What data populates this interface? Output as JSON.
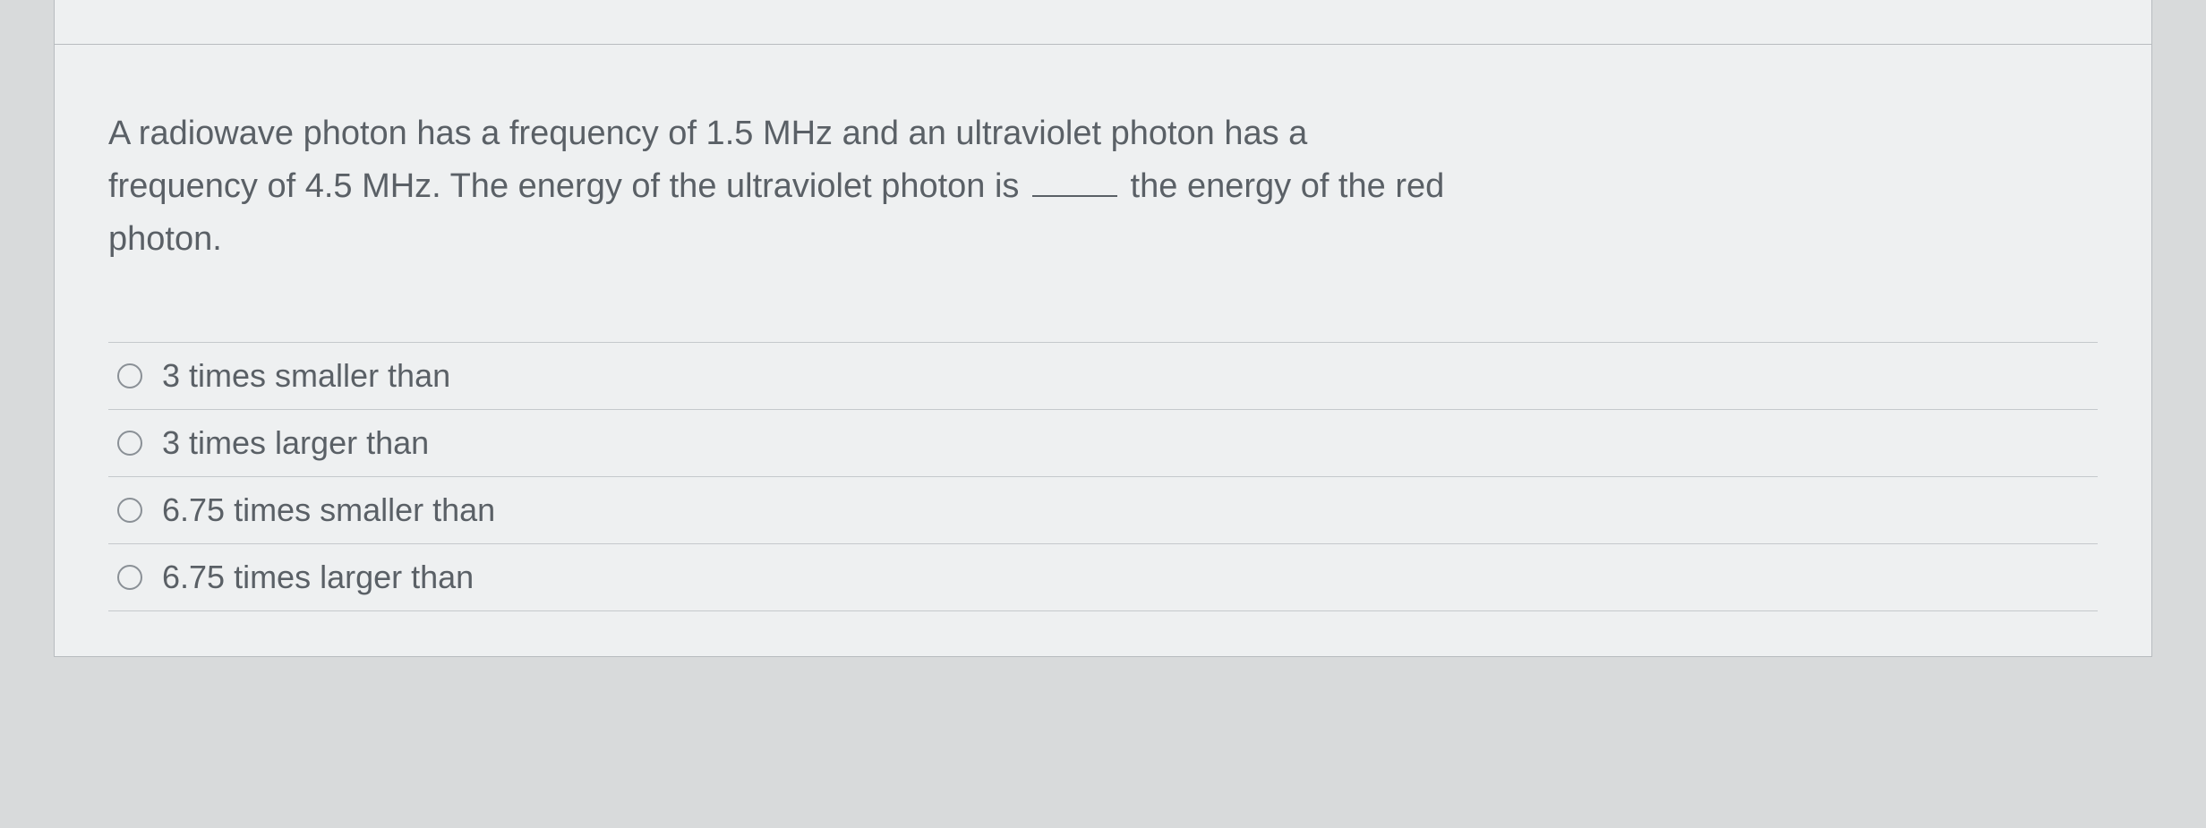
{
  "question": {
    "text_line1": "A radiowave photon has a frequency of 1.5 MHz and an ultraviolet photon has a",
    "text_line2_before_blank": "frequency of 4.5 MHz. The energy of the ultraviolet photon is ",
    "text_line2_after_blank": " the energy of the red",
    "text_line3": "photon."
  },
  "options": [
    {
      "label": "3 times smaller than"
    },
    {
      "label": "3 times larger than"
    },
    {
      "label": "6.75 times smaller than"
    },
    {
      "label": "6.75 times larger than"
    }
  ],
  "colors": {
    "background": "#d8dadb",
    "panel_background": "#eef0f1",
    "border": "#b8bcbf",
    "row_border": "#c5c9cc",
    "text": "#5a6066",
    "radio_border": "#8a9096"
  }
}
